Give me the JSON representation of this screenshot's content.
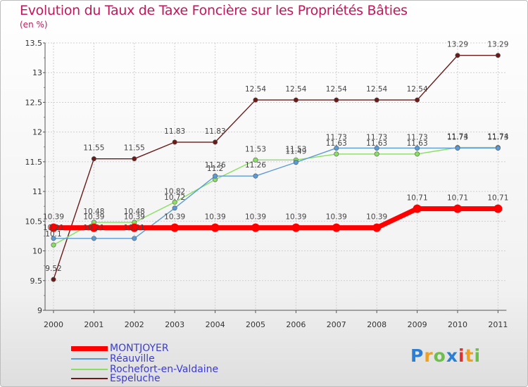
{
  "header": {
    "title": "Evolution du Taux de Taxe Foncière sur les Propriétés Bâties",
    "unit": "(en %)"
  },
  "chart_data": {
    "type": "line",
    "title": "Evolution du Taux de Taxe Foncière sur les Propriétés Bâties",
    "ylabel": "(en %)",
    "xlabel": "",
    "categories": [
      "2000",
      "2001",
      "2002",
      "2003",
      "2004",
      "2005",
      "2006",
      "2007",
      "2008",
      "2009",
      "2010",
      "2011"
    ],
    "yticks": [
      "9",
      "9.5",
      "10",
      "10.5",
      "11",
      "11.5",
      "12",
      "12.5",
      "13",
      "13.5"
    ],
    "ylim": [
      9,
      13.5
    ],
    "series": [
      {
        "name": "MONTJOYER",
        "color": "#ff0000",
        "values": [
          10.39,
          10.39,
          10.39,
          10.39,
          10.39,
          10.39,
          10.39,
          10.39,
          10.39,
          10.71,
          10.71,
          10.71
        ],
        "labels": [
          "10.39",
          "10.39",
          "10.39",
          "10.39",
          "10.39",
          "10.39",
          "10.39",
          "10.39",
          "10.39",
          "10.71",
          "10.71",
          "10.71"
        ]
      },
      {
        "name": "Réauville",
        "color": "#5b9bd5",
        "values": [
          10.21,
          10.21,
          10.21,
          10.72,
          11.26,
          11.26,
          11.49,
          11.73,
          11.73,
          11.73,
          11.73,
          11.73
        ],
        "labels": [
          "10.21",
          "10.21",
          "10.21",
          "10.72",
          "11.26",
          "11.26",
          "11.49",
          "11.73",
          "11.73",
          "11.73",
          "11.73",
          "11.73"
        ]
      },
      {
        "name": "Rochefort-en-Valdaine",
        "color": "#88e060",
        "values": [
          10.1,
          10.48,
          10.48,
          10.82,
          11.2,
          11.53,
          11.53,
          11.63,
          11.63,
          11.63,
          11.74,
          11.74
        ],
        "labels": [
          "10.1",
          "10.48",
          "10.48",
          "10.82",
          "11.2",
          "11.53",
          "11.53",
          "11.63",
          "11.63",
          "11.63",
          "11.74",
          "11.74"
        ]
      },
      {
        "name": "Espeluche",
        "color": "#6b1a1a",
        "values": [
          9.52,
          11.55,
          11.55,
          11.83,
          11.83,
          12.54,
          12.54,
          12.54,
          12.54,
          12.54,
          13.29,
          13.29
        ],
        "labels": [
          "9.52",
          "11.55",
          "11.55",
          "11.83",
          "11.83",
          "12.54",
          "12.54",
          "12.54",
          "12.54",
          "12.54",
          "13.29",
          "13.29"
        ]
      }
    ],
    "legend_position": "bottom-left"
  },
  "logo": {
    "letters": [
      "P",
      "r",
      "o",
      "x",
      "i",
      "t",
      "i"
    ],
    "colors": [
      "#2a7fd4",
      "#f0a020",
      "#6cc04a",
      "#2a7fd4",
      "#e03030",
      "#f0a020",
      "#6cc04a"
    ]
  }
}
